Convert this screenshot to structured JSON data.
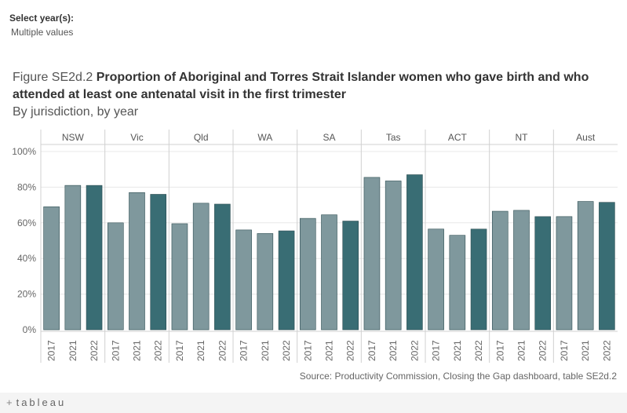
{
  "filter": {
    "label": "Select year(s):",
    "value": "Multiple values"
  },
  "title": {
    "prefix": "Figure SE2d.2",
    "main": "Proportion of Aboriginal and Torres Strait Islander women who gave birth and who attended at least one antenatal visit in the first trimester",
    "subtitle": "By jurisdiction, by year"
  },
  "source": "Source: Productivity Commission, Closing the Gap dashboard, table SE2d.2",
  "brand": {
    "mark": "+",
    "name": "tableau"
  },
  "colors": {
    "light_bar": "#7f989d",
    "dark_bar": "#396d74",
    "grid": "#e8e8e8",
    "divider": "#d0d0d0"
  },
  "chart_data": {
    "type": "bar",
    "title": "Proportion of Aboriginal and Torres Strait Islander women who gave birth and who attended at least one antenatal visit in the first trimester",
    "xlabel": "",
    "ylabel": "",
    "ylim": [
      0,
      100
    ],
    "y_ticks": [
      "0%",
      "20%",
      "40%",
      "60%",
      "80%",
      "100%"
    ],
    "grid": true,
    "years": [
      "2017",
      "2021",
      "2022"
    ],
    "groups": [
      {
        "name": "NSW",
        "values": [
          69,
          81,
          81
        ]
      },
      {
        "name": "Vic",
        "values": [
          60,
          77,
          76
        ]
      },
      {
        "name": "Qld",
        "values": [
          59.5,
          71,
          70.5
        ]
      },
      {
        "name": "WA",
        "values": [
          56,
          54,
          55.5
        ]
      },
      {
        "name": "SA",
        "values": [
          62.5,
          64.5,
          61
        ]
      },
      {
        "name": "Tas",
        "values": [
          85.5,
          83.5,
          87
        ]
      },
      {
        "name": "ACT",
        "values": [
          56.5,
          53,
          56.5
        ]
      },
      {
        "name": "NT",
        "values": [
          66.5,
          67,
          63.5
        ]
      },
      {
        "name": "Aust",
        "values": [
          63.5,
          72,
          71.5
        ]
      }
    ]
  }
}
